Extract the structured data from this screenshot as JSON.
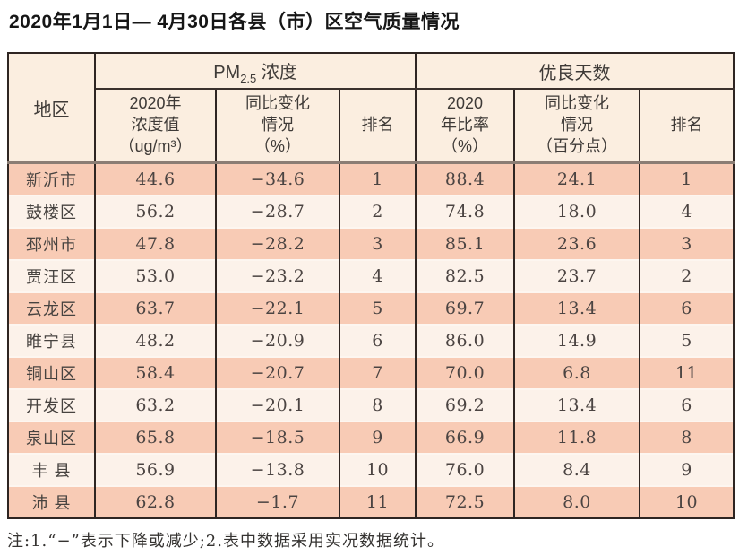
{
  "title": "2020年1月1日— 4月30日各县（市）区空气质量情况",
  "note": "注:1.“−”表示下降或减少;2.表中数据采用实况数据统计。",
  "colors": {
    "row_salmon": "#f8cbb5",
    "row_cream": "#fcf2ea",
    "header_bg": "#fbeee0",
    "border_dark": "#2e2522",
    "header_separator": "#8b7d74"
  },
  "table": {
    "header": {
      "region": "地区",
      "pm25_group": {
        "prefix": "PM",
        "sub": "2.5",
        "suffix": " 浓度"
      },
      "good_days_group": "优良天数",
      "sub_headers": {
        "pm_value": "2020年\n浓度值\n（ug/m³）",
        "pm_change": "同比变化\n情况\n（%）",
        "pm_rank": "排名",
        "ratio": "2020\n年比率\n（%）",
        "ratio_change": "同比变化\n情况\n（百分点）",
        "ratio_rank": "排名"
      }
    },
    "columns_keys": [
      "region",
      "pm_value",
      "pm_change",
      "pm_rank",
      "ratio",
      "ratio_change",
      "ratio_rank"
    ],
    "rows": [
      {
        "region": "新沂市",
        "pm_value": "44.6",
        "pm_change": "−34.6",
        "pm_rank": "1",
        "ratio": "88.4",
        "ratio_change": "24.1",
        "ratio_rank": "1"
      },
      {
        "region": "鼓楼区",
        "pm_value": "56.2",
        "pm_change": "−28.7",
        "pm_rank": "2",
        "ratio": "74.8",
        "ratio_change": "18.0",
        "ratio_rank": "4"
      },
      {
        "region": "邳州市",
        "pm_value": "47.8",
        "pm_change": "−28.2",
        "pm_rank": "3",
        "ratio": "85.1",
        "ratio_change": "23.6",
        "ratio_rank": "3"
      },
      {
        "region": "贾汪区",
        "pm_value": "53.0",
        "pm_change": "−23.2",
        "pm_rank": "4",
        "ratio": "82.5",
        "ratio_change": "23.7",
        "ratio_rank": "2"
      },
      {
        "region": "云龙区",
        "pm_value": "63.7",
        "pm_change": "−22.1",
        "pm_rank": "5",
        "ratio": "69.7",
        "ratio_change": "13.4",
        "ratio_rank": "6"
      },
      {
        "region": "睢宁县",
        "pm_value": "48.2",
        "pm_change": "−20.9",
        "pm_rank": "6",
        "ratio": "86.0",
        "ratio_change": "14.9",
        "ratio_rank": "5"
      },
      {
        "region": "铜山区",
        "pm_value": "58.4",
        "pm_change": "−20.7",
        "pm_rank": "7",
        "ratio": "70.0",
        "ratio_change": "6.8",
        "ratio_rank": "11"
      },
      {
        "region": "开发区",
        "pm_value": "63.2",
        "pm_change": "−20.1",
        "pm_rank": "8",
        "ratio": "69.2",
        "ratio_change": "13.4",
        "ratio_rank": "6"
      },
      {
        "region": "泉山区",
        "pm_value": "65.8",
        "pm_change": "−18.5",
        "pm_rank": "9",
        "ratio": "66.9",
        "ratio_change": "11.8",
        "ratio_rank": "8"
      },
      {
        "region": "丰 县",
        "pm_value": "56.9",
        "pm_change": "−13.8",
        "pm_rank": "10",
        "ratio": "76.0",
        "ratio_change": "8.4",
        "ratio_rank": "9"
      },
      {
        "region": "沛 县",
        "pm_value": "62.8",
        "pm_change": "−1.7",
        "pm_rank": "11",
        "ratio": "72.5",
        "ratio_change": "8.0",
        "ratio_rank": "10"
      }
    ]
  }
}
